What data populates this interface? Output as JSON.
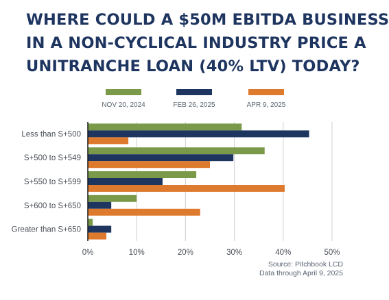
{
  "title_lines": [
    "WHERE COULD A $50M EBITDA BUSINESS",
    "IN A NON-CYCLICAL INDUSTRY PRICE A",
    "UNITRANCHE LOAN (40% LTV) TODAY?"
  ],
  "source_lines": [
    "Source: Pitchbook LCD",
    "Data through April 9, 2025"
  ],
  "chart_data": {
    "type": "bar",
    "orientation": "horizontal",
    "categories": [
      "Less than S+500",
      "S+500 to S+549",
      "S+550 to S+599",
      "S+600 to S+650",
      "Greater than S+650"
    ],
    "series": [
      {
        "name": "NOV 20, 2024",
        "color": "#7a9a4a",
        "values": [
          31.5,
          36.2,
          22.2,
          10.0,
          1.0
        ]
      },
      {
        "name": "FEB 26, 2025",
        "color": "#1e3560",
        "values": [
          45.3,
          29.8,
          15.3,
          4.8,
          4.8
        ]
      },
      {
        "name": "APR 9, 2025",
        "color": "#de7a2e",
        "values": [
          8.3,
          25.0,
          40.3,
          23.0,
          3.8
        ]
      }
    ],
    "x_ticks": [
      "0%",
      "10%",
      "20%",
      "30%",
      "40%",
      "50%"
    ],
    "xlim": [
      0,
      50
    ],
    "grid": true,
    "legend_position": "top"
  }
}
